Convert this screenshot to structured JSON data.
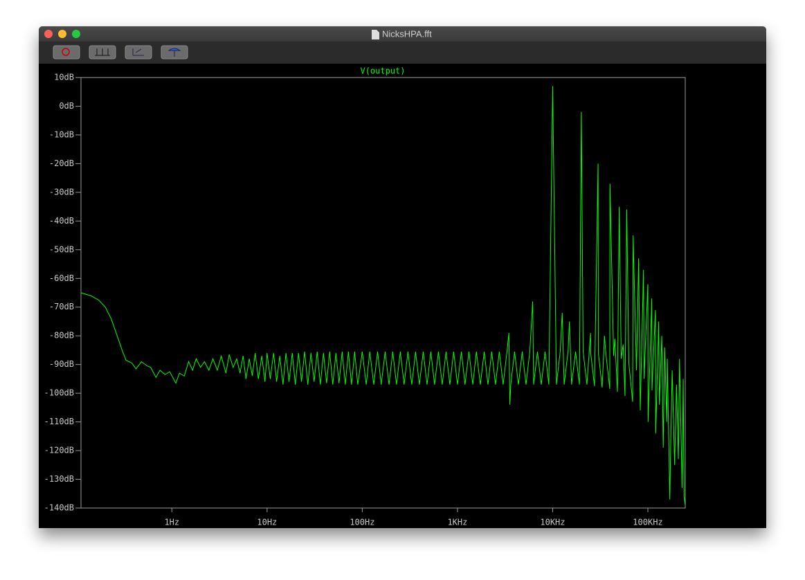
{
  "window": {
    "title": "NicksHPA.fft"
  },
  "chart_data": {
    "type": "line",
    "title": "V(output)",
    "log_x": true,
    "xlim": [
      0.111,
      247000
    ],
    "ylim": [
      -140,
      10
    ],
    "xticks": [
      {
        "value": 1,
        "label": "1Hz"
      },
      {
        "value": 10,
        "label": "10Hz"
      },
      {
        "value": 100,
        "label": "100Hz"
      },
      {
        "value": 1000,
        "label": "1KHz"
      },
      {
        "value": 10000,
        "label": "10KHz"
      },
      {
        "value": 100000,
        "label": "100KHz"
      }
    ],
    "yticks": [
      {
        "value": 10,
        "label": "10dB"
      },
      {
        "value": 0,
        "label": "0dB"
      },
      {
        "value": -10,
        "label": "-10dB"
      },
      {
        "value": -20,
        "label": "-20dB"
      },
      {
        "value": -30,
        "label": "-30dB"
      },
      {
        "value": -40,
        "label": "-40dB"
      },
      {
        "value": -50,
        "label": "-50dB"
      },
      {
        "value": -60,
        "label": "-60dB"
      },
      {
        "value": -70,
        "label": "-70dB"
      },
      {
        "value": -80,
        "label": "-80dB"
      },
      {
        "value": -90,
        "label": "-90dB"
      },
      {
        "value": -100,
        "label": "-100dB"
      },
      {
        "value": -110,
        "label": "-110dB"
      },
      {
        "value": -120,
        "label": "-120dB"
      },
      {
        "value": -130,
        "label": "-130dB"
      },
      {
        "value": -140,
        "label": "-140dB"
      }
    ],
    "series": [
      {
        "name": "V(output)",
        "color": "#00ff00",
        "x": [
          0.111,
          0.14,
          0.17,
          0.2,
          0.23,
          0.26,
          0.3,
          0.33,
          0.38,
          0.42,
          0.48,
          0.55,
          0.6,
          0.68,
          0.75,
          0.85,
          0.95,
          1.1,
          1.2,
          1.35,
          1.5,
          1.65,
          1.8,
          2,
          2.2,
          2.45,
          2.7,
          3,
          3.3,
          3.7,
          4,
          4.4,
          4.8,
          5.2,
          5.6,
          6,
          6.5,
          7,
          7.5,
          8.1,
          8.8,
          9.5,
          10,
          10.8,
          11.7,
          12.6,
          13.6,
          14.7,
          15.8,
          17,
          18.4,
          19.8,
          21.4,
          23,
          24.8,
          26.8,
          28.9,
          31.2,
          33.6,
          36.3,
          39.1,
          42.2,
          45.5,
          49,
          52.9,
          57,
          61.5,
          66.3,
          71.5,
          77.1,
          83.2,
          89.7,
          100,
          110,
          120,
          132,
          145,
          158,
          174,
          191,
          209,
          229,
          251,
          275,
          302,
          331,
          363,
          398,
          437,
          479,
          525,
          575,
          631,
          692,
          759,
          832,
          912,
          1000,
          1100,
          1200,
          1320,
          1450,
          1580,
          1740,
          1910,
          2090,
          2290,
          2510,
          2750,
          3020,
          3310,
          3470,
          3550,
          3630,
          3980,
          4370,
          4790,
          5250,
          5750,
          6170,
          6310,
          6920,
          7590,
          8320,
          9120,
          10000,
          10960,
          12000,
          12600,
          13200,
          14500,
          15000,
          15800,
          17400,
          19100,
          20000,
          20900,
          22900,
          25000,
          25100,
          27500,
          30000,
          30200,
          33100,
          35000,
          36300,
          39800,
          40000,
          43700,
          45000,
          47900,
          50000,
          52500,
          55000,
          57500,
          60000,
          63100,
          69200,
          70000,
          75900,
          80000,
          83200,
          90000,
          91200,
          100000,
          100500,
          110000,
          110500,
          120000,
          121000,
          130000,
          132000,
          140000,
          145000,
          150000,
          158000,
          160000,
          170000,
          174000,
          180000,
          191000,
          200000,
          209000,
          215000,
          229000,
          235000,
          240000,
          247000
        ],
        "values": [
          -65,
          -66,
          -67.5,
          -70,
          -74,
          -79,
          -85,
          -88.5,
          -89.5,
          -91.5,
          -89,
          -90.5,
          -91,
          -94.5,
          -92,
          -93.5,
          -92.5,
          -96.5,
          -93,
          -94,
          -89,
          -92,
          -88,
          -91,
          -89,
          -92,
          -88,
          -92,
          -87,
          -93,
          -86.5,
          -91,
          -88,
          -93,
          -87,
          -95,
          -88,
          -94,
          -86,
          -95,
          -87,
          -96,
          -86,
          -95,
          -86,
          -96,
          -87,
          -97,
          -86,
          -96,
          -86,
          -97,
          -86,
          -96,
          -85.5,
          -97,
          -86,
          -96,
          -85.5,
          -97,
          -86,
          -96.5,
          -85.5,
          -97,
          -86,
          -96.5,
          -85.5,
          -97,
          -85.5,
          -97,
          -85.5,
          -97,
          -85.5,
          -97,
          -85.5,
          -97,
          -85.5,
          -97,
          -85.5,
          -97,
          -85.5,
          -97,
          -85.5,
          -97,
          -85.5,
          -97,
          -85.5,
          -97,
          -85.5,
          -97,
          -85.5,
          -97,
          -85.5,
          -97,
          -85.5,
          -97,
          -85.5,
          -97,
          -85.5,
          -97,
          -85.5,
          -97,
          -85.5,
          -97,
          -85.5,
          -97,
          -85.5,
          -97,
          -85.5,
          -97,
          -85.5,
          -79,
          -104,
          -97,
          -85.5,
          -97,
          -85.5,
          -97,
          -85.5,
          -68,
          -97,
          -85.5,
          -97,
          -85.5,
          -97,
          7,
          -97,
          -85.5,
          -72,
          -97,
          -85.5,
          -75,
          -97,
          -85.5,
          -97,
          -2,
          -85.5,
          -97,
          -79,
          -86,
          -97.5,
          -20,
          -86,
          -98,
          -80,
          -86.5,
          -98.5,
          -27,
          -87,
          -81,
          -99.5,
          -35,
          -88,
          -83,
          -101,
          -36,
          -89.5,
          -103,
          -45,
          -92,
          -53,
          -106,
          -57,
          -95,
          -62,
          -110,
          -67,
          -99,
          -71,
          -114,
          -75,
          -104,
          -80,
          -119,
          -84,
          -110,
          -88,
          -137,
          -117,
          -92,
          -125,
          -97,
          -123,
          -88,
          -133,
          -95,
          -136,
          -139
        ]
      }
    ]
  }
}
